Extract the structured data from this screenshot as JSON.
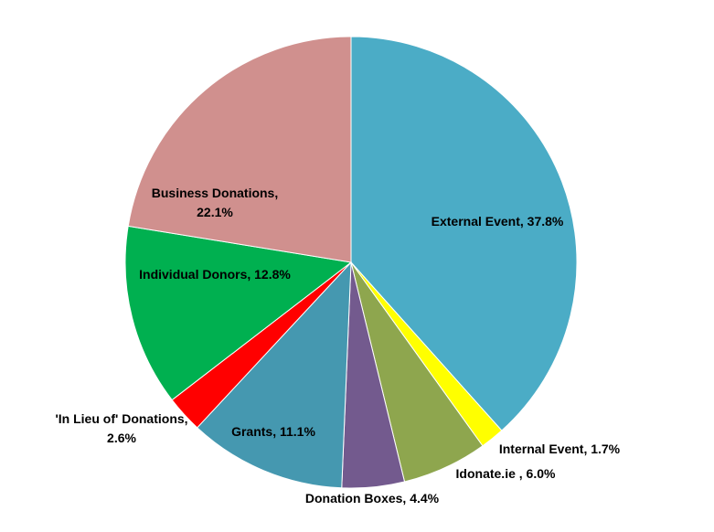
{
  "chart_data": {
    "type": "pie",
    "title": "",
    "slices": [
      {
        "name": "External Event",
        "value": 37.8,
        "label_lines": [
          "External Event, 37.8%"
        ],
        "color": "#4BACC6"
      },
      {
        "name": "Internal Event",
        "value": 1.7,
        "label_lines": [
          "Internal Event, 1.7%"
        ],
        "color": "#FFFF00"
      },
      {
        "name": "Idonate.ie",
        "value": 6.0,
        "label_lines": [
          "Idonate.ie , 6.0%"
        ],
        "color": "#8EA64E"
      },
      {
        "name": "Donation Boxes",
        "value": 4.4,
        "label_lines": [
          "Donation Boxes, 4.4%"
        ],
        "color": "#735A8E"
      },
      {
        "name": "Grants",
        "value": 11.1,
        "label_lines": [
          "Grants, 11.1%"
        ],
        "color": "#4598B0"
      },
      {
        "name": "'In Lieu of' Donations",
        "value": 2.6,
        "label_lines": [
          "'In Lieu of' Donations,",
          "2.6%"
        ],
        "color": "#FF0000"
      },
      {
        "name": "Individual Donors",
        "value": 12.8,
        "label_lines": [
          "Individual Donors, 12.8%"
        ],
        "color": "#00B050"
      },
      {
        "name": "Business Donations",
        "value": 22.1,
        "label_lines": [
          "Business Donations,",
          "22.1%"
        ],
        "color": "#D0908E"
      }
    ],
    "start_angle_deg": 0,
    "direction": "clockwise",
    "legend": "none"
  }
}
